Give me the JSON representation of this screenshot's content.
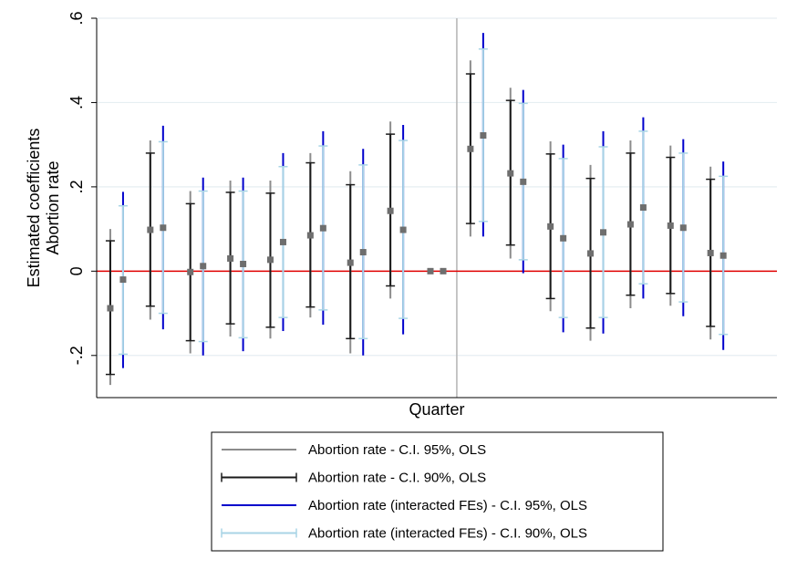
{
  "chart_data": {
    "type": "errorbar",
    "title": "",
    "xlabel": "Quarter",
    "ylabel_lines": [
      "Estimated coefficients",
      "Abortion rate"
    ],
    "ylim": [
      -0.3,
      0.6
    ],
    "yticks": [
      -0.2,
      0,
      0.2,
      0.4,
      0.6
    ],
    "ytick_labels": [
      "-.2",
      "0",
      ".2",
      ".4",
      ".6"
    ],
    "grid": true,
    "reference_line_y": 0,
    "reference_line_color": "#e00000",
    "event_line_after_period": 9,
    "n_periods": 17,
    "legend_position": "bottom",
    "series": [
      {
        "name": "Abortion rate (OLS)",
        "marker_color": "#6e6e6e",
        "ci95_color": "#8c8c8c",
        "ci90_color": "#1a1a1a",
        "legend_95": "Abortion rate - C.I. 95%, OLS",
        "legend_90": "Abortion rate - C.I. 90%, OLS",
        "points": [
          {
            "period": 1,
            "coef": -0.088,
            "lo95": -0.27,
            "hi95": 0.1,
            "lo90": -0.245,
            "hi90": 0.072
          },
          {
            "period": 2,
            "coef": 0.098,
            "lo95": -0.115,
            "hi95": 0.31,
            "lo90": -0.083,
            "hi90": 0.28
          },
          {
            "period": 3,
            "coef": -0.002,
            "lo95": -0.195,
            "hi95": 0.19,
            "lo90": -0.165,
            "hi90": 0.16
          },
          {
            "period": 4,
            "coef": 0.03,
            "lo95": -0.155,
            "hi95": 0.215,
            "lo90": -0.125,
            "hi90": 0.187
          },
          {
            "period": 5,
            "coef": 0.027,
            "lo95": -0.16,
            "hi95": 0.215,
            "lo90": -0.133,
            "hi90": 0.185
          },
          {
            "period": 6,
            "coef": 0.085,
            "lo95": -0.11,
            "hi95": 0.28,
            "lo90": -0.085,
            "hi90": 0.257
          },
          {
            "period": 7,
            "coef": 0.02,
            "lo95": -0.195,
            "hi95": 0.237,
            "lo90": -0.16,
            "hi90": 0.205
          },
          {
            "period": 8,
            "coef": 0.143,
            "lo95": -0.065,
            "hi95": 0.355,
            "lo90": -0.035,
            "hi90": 0.325
          },
          {
            "period": 9,
            "coef": 0.0,
            "lo95": 0.0,
            "hi95": 0.0,
            "lo90": 0.0,
            "hi90": 0.0
          },
          {
            "period": 10,
            "coef": 0.29,
            "lo95": 0.082,
            "hi95": 0.5,
            "lo90": 0.113,
            "hi90": 0.468
          },
          {
            "period": 11,
            "coef": 0.232,
            "lo95": 0.03,
            "hi95": 0.435,
            "lo90": 0.062,
            "hi90": 0.405
          },
          {
            "period": 12,
            "coef": 0.106,
            "lo95": -0.095,
            "hi95": 0.308,
            "lo90": -0.065,
            "hi90": 0.278
          },
          {
            "period": 13,
            "coef": 0.042,
            "lo95": -0.165,
            "hi95": 0.252,
            "lo90": -0.135,
            "hi90": 0.22
          },
          {
            "period": 14,
            "coef": 0.111,
            "lo95": -0.088,
            "hi95": 0.31,
            "lo90": -0.057,
            "hi90": 0.28
          },
          {
            "period": 15,
            "coef": 0.108,
            "lo95": -0.082,
            "hi95": 0.298,
            "lo90": -0.053,
            "hi90": 0.27
          },
          {
            "period": 16,
            "coef": 0.043,
            "lo95": -0.162,
            "hi95": 0.248,
            "lo90": -0.131,
            "hi90": 0.218
          }
        ]
      },
      {
        "name": "Abortion rate (interacted FEs) (OLS)",
        "marker_color": "#6e6e6e",
        "ci95_color": "#0000cc",
        "ci90_color": "#a8d4e6",
        "legend_95": "Abortion rate (interacted FEs) - C.I. 95%, OLS",
        "legend_90": "Abortion rate  (interacted FEs) - C.I. 90%, OLS",
        "points": [
          {
            "period": 1,
            "coef": -0.02,
            "lo95": -0.23,
            "hi95": 0.188,
            "lo90": -0.197,
            "hi90": 0.155
          },
          {
            "period": 2,
            "coef": 0.103,
            "lo95": -0.138,
            "hi95": 0.345,
            "lo90": -0.1,
            "hi90": 0.307
          },
          {
            "period": 3,
            "coef": 0.012,
            "lo95": -0.2,
            "hi95": 0.222,
            "lo90": -0.167,
            "hi90": 0.19
          },
          {
            "period": 4,
            "coef": 0.017,
            "lo95": -0.19,
            "hi95": 0.222,
            "lo90": -0.158,
            "hi90": 0.19
          },
          {
            "period": 5,
            "coef": 0.069,
            "lo95": -0.142,
            "hi95": 0.28,
            "lo90": -0.11,
            "hi90": 0.248
          },
          {
            "period": 6,
            "coef": 0.102,
            "lo95": -0.127,
            "hi95": 0.332,
            "lo90": -0.092,
            "hi90": 0.297
          },
          {
            "period": 7,
            "coef": 0.045,
            "lo95": -0.2,
            "hi95": 0.29,
            "lo90": -0.16,
            "hi90": 0.252
          },
          {
            "period": 8,
            "coef": 0.098,
            "lo95": -0.15,
            "hi95": 0.347,
            "lo90": -0.112,
            "hi90": 0.31
          },
          {
            "period": 9,
            "coef": 0.0,
            "lo95": 0.0,
            "hi95": 0.0,
            "lo90": 0.0,
            "hi90": 0.0
          },
          {
            "period": 10,
            "coef": 0.322,
            "lo95": 0.082,
            "hi95": 0.565,
            "lo90": 0.118,
            "hi90": 0.527
          },
          {
            "period": 11,
            "coef": 0.212,
            "lo95": -0.005,
            "hi95": 0.43,
            "lo90": 0.027,
            "hi90": 0.398
          },
          {
            "period": 12,
            "coef": 0.078,
            "lo95": -0.145,
            "hi95": 0.3,
            "lo90": -0.11,
            "hi90": 0.267
          },
          {
            "period": 13,
            "coef": 0.092,
            "lo95": -0.148,
            "hi95": 0.332,
            "lo90": -0.11,
            "hi90": 0.295
          },
          {
            "period": 14,
            "coef": 0.151,
            "lo95": -0.065,
            "hi95": 0.365,
            "lo90": -0.03,
            "hi90": 0.332
          },
          {
            "period": 15,
            "coef": 0.103,
            "lo95": -0.107,
            "hi95": 0.313,
            "lo90": -0.073,
            "hi90": 0.28
          },
          {
            "period": 16,
            "coef": 0.037,
            "lo95": -0.187,
            "hi95": 0.26,
            "lo90": -0.15,
            "hi90": 0.225
          }
        ]
      }
    ]
  }
}
